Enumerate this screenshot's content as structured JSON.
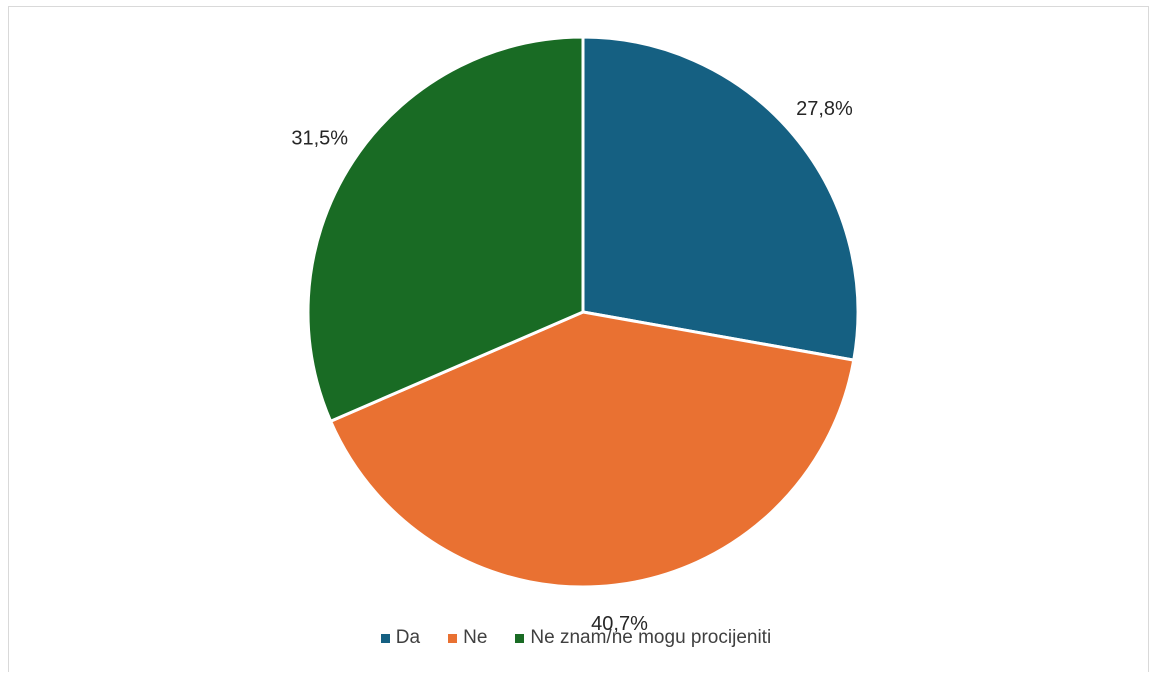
{
  "chart_data": {
    "type": "pie",
    "title": "",
    "categories": [
      "Da",
      "Ne",
      "Ne znam/ne mogu procijeniti"
    ],
    "values": [
      27.8,
      40.7,
      31.5
    ],
    "labels": [
      "27,8%",
      "40,7%",
      "31,5%"
    ],
    "colors": [
      "#156082",
      "#E97132",
      "#196B24"
    ],
    "legend_placement": "bottom",
    "start_angle_deg": 0,
    "direction": "clockwise"
  }
}
